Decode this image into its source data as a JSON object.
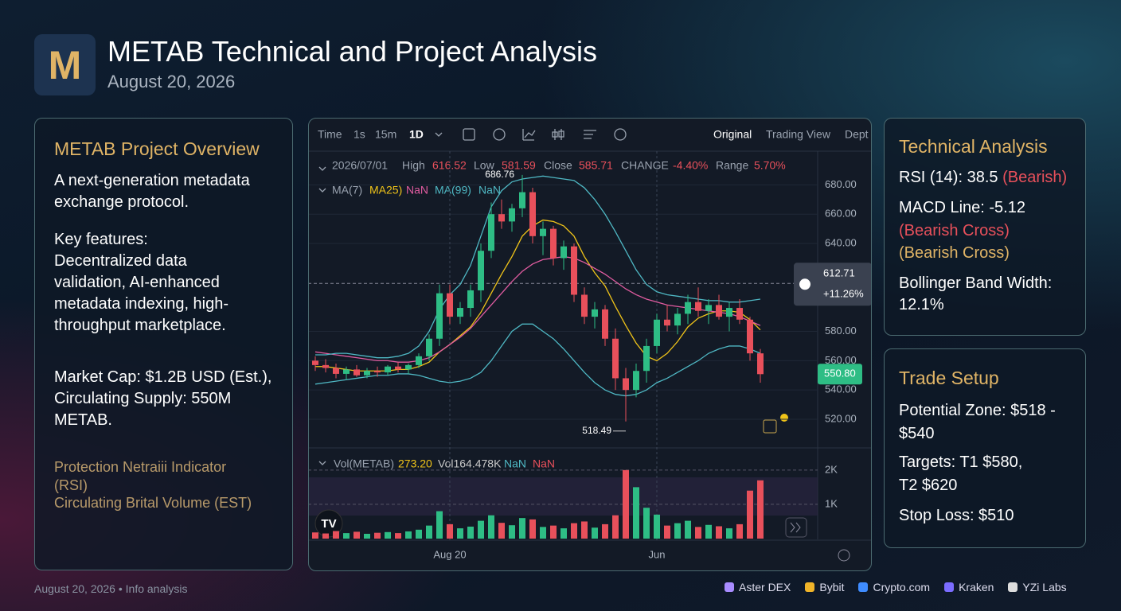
{
  "header": {
    "logo": "M",
    "title": "METAB Technical and Project Analysis",
    "date": "August 20, 2026"
  },
  "overview": {
    "title": "METAB Project Overview",
    "intro": "A next-generation metadata exchange protocol.",
    "features_label": "Key features:",
    "features": "Decentralized data validation, AI-enhanced metadata indexing, high-throughput marketplace.",
    "market": "Market Cap: $1.2B USD (Est.), Circulating Supply: 550M METAB.",
    "note1": "Protection Netraiii Indicator (RSI)",
    "note2": "Circulating Brital Volume (EST)"
  },
  "toolbar": {
    "items": [
      "Time",
      "1s",
      "15m",
      "1D"
    ],
    "views": [
      "Original",
      "Trading View",
      "Dept"
    ]
  },
  "info": {
    "date": "2026/07/01",
    "high_label": "High",
    "high": "616.52",
    "low_label": "Low",
    "low": "581.59",
    "close_label": "Close",
    "close": "585.71",
    "change_label": "CHANGE",
    "change": "-4.40%",
    "range_label": "Range",
    "range": "5.70%"
  },
  "ma_legend": [
    "MA(7)",
    "MA25)",
    "NaN",
    "MA(99)",
    "NaN"
  ],
  "vol_legend": [
    "Vol(METAB)",
    "273.20",
    "Vol164.478K",
    "NaN",
    "NaN"
  ],
  "chart_data": {
    "type": "candlestick",
    "categories": [
      null,
      null,
      null,
      null,
      null,
      null,
      null,
      null,
      null,
      null,
      null,
      null,
      null,
      "Aug 20",
      null,
      null,
      null,
      null,
      null,
      null,
      null,
      null,
      null,
      null,
      null,
      null,
      null,
      null,
      null,
      null,
      null,
      null,
      null,
      "Jun",
      null,
      null,
      null,
      null,
      null,
      null,
      null,
      null,
      null,
      null
    ],
    "open": [
      560,
      557,
      555,
      551,
      554,
      550,
      553,
      552,
      556,
      554,
      557,
      563,
      575,
      606,
      590,
      596,
      608,
      635,
      660,
      655,
      664,
      675,
      645,
      650,
      630,
      638,
      605,
      590,
      595,
      575,
      548,
      540,
      553,
      570,
      588,
      584,
      592,
      600,
      594,
      598,
      590,
      596,
      588,
      565
    ],
    "high": [
      563,
      561,
      558,
      556,
      557,
      555,
      556,
      557,
      559,
      558,
      565,
      578,
      612,
      612,
      600,
      612,
      640,
      668,
      670,
      667,
      686.76,
      678,
      655,
      652,
      642,
      640,
      610,
      600,
      598,
      582,
      555,
      558,
      575,
      592,
      598,
      596,
      605,
      610,
      602,
      605,
      600,
      602,
      590,
      568
    ],
    "low": [
      553,
      552,
      548,
      547,
      549,
      548,
      549,
      550,
      552,
      551,
      555,
      560,
      570,
      585,
      585,
      590,
      600,
      630,
      650,
      648,
      658,
      640,
      632,
      625,
      622,
      600,
      585,
      582,
      570,
      540,
      518.49,
      535,
      545,
      565,
      580,
      578,
      585,
      590,
      585,
      588,
      580,
      585,
      560,
      545
    ],
    "close": [
      557,
      555,
      551,
      554,
      550,
      553,
      552,
      556,
      554,
      557,
      563,
      575,
      606,
      590,
      596,
      608,
      635,
      660,
      655,
      664,
      675,
      645,
      650,
      630,
      638,
      605,
      590,
      595,
      575,
      548,
      540,
      553,
      570,
      588,
      584,
      592,
      600,
      594,
      598,
      590,
      596,
      588,
      565,
      550.8
    ],
    "up_color": "#2ebd85",
    "down_color": "#e8505b",
    "ylim": [
      501,
      703
    ],
    "yticks": [
      {
        "value": 520,
        "label": "520.00"
      },
      {
        "value": 540,
        "label": "540.00"
      },
      {
        "value": 560,
        "label": "560.00"
      },
      {
        "value": 580,
        "label": "580.00"
      },
      {
        "value": 640,
        "label": "640.00"
      },
      {
        "value": 660,
        "label": "660.00"
      },
      {
        "value": 680,
        "label": "680.00"
      }
    ],
    "overlays": [
      {
        "color": "#f0c419",
        "values": [
          556,
          556,
          555,
          554,
          553,
          553,
          553,
          553,
          554,
          554,
          556,
          559,
          566,
          571,
          577,
          583,
          593,
          606,
          619,
          631,
          645,
          652,
          656,
          655,
          652,
          645,
          631,
          620,
          611,
          597,
          584,
          572,
          563,
          560,
          565,
          573,
          583,
          589,
          592,
          594,
          594,
          593,
          588,
          581
        ]
      },
      {
        "color": "#e05ca0",
        "values": [
          566,
          565,
          564,
          563,
          562,
          561,
          560,
          560,
          559,
          559,
          560,
          562,
          566,
          571,
          576,
          582,
          590,
          598,
          606,
          614,
          621,
          626,
          629,
          630,
          631,
          630,
          627,
          623,
          619,
          614,
          609,
          605,
          602,
          600,
          598,
          597,
          596,
          595,
          594,
          593,
          592,
          590,
          587,
          584
        ]
      },
      {
        "color": "#4fb8c4",
        "values": [
          564,
          564,
          565,
          565,
          564,
          563,
          562,
          562,
          563,
          565,
          570,
          580,
          595,
          605,
          612,
          625,
          645,
          665,
          676,
          682,
          684,
          685,
          686,
          685,
          684,
          683,
          678,
          670,
          660,
          648,
          635,
          622,
          612,
          607,
          605,
          604,
          603,
          602,
          601,
          601,
          600,
          600,
          601,
          602
        ]
      },
      {
        "color": "#4fb8c4",
        "values": [
          544,
          545,
          546,
          547,
          548,
          549,
          550,
          550,
          551,
          551,
          550,
          548,
          546,
          545,
          546,
          548,
          552,
          560,
          570,
          580,
          585,
          585,
          580,
          575,
          568,
          560,
          552,
          545,
          540,
          537,
          536,
          537,
          540,
          545,
          548,
          552,
          556,
          560,
          565,
          568,
          570,
          570,
          568,
          565
        ]
      }
    ],
    "high_marker": 686.76,
    "low_marker": 518.49,
    "crosshair": 612.71,
    "crosshair_change": "+11.26%",
    "last_price": {
      "value": 550.8,
      "label": "550.80"
    },
    "volume": {
      "values": [
        180,
        150,
        220,
        160,
        200,
        140,
        170,
        190,
        160,
        210,
        260,
        380,
        800,
        420,
        300,
        350,
        520,
        680,
        460,
        390,
        600,
        560,
        340,
        380,
        300,
        450,
        500,
        320,
        420,
        680,
        2000,
        1500,
        900,
        700,
        380,
        450,
        520,
        340,
        400,
        360,
        300,
        420,
        1400,
        1700
      ],
      "ylim": [
        0,
        2600
      ],
      "yticks": [
        {
          "value": 1000,
          "label": "1K"
        },
        {
          "value": 2000,
          "label": "2K"
        }
      ]
    }
  },
  "technical": {
    "title": "Technical Analysis",
    "rsi": "RSI (14): 38.5",
    "rsi_note": "(Bearish)",
    "macd": "MACD Line: -5.12",
    "macd_note1": "(Bearish Cross)",
    "macd_note2": "(Bearish Cross)",
    "bbw": "Bollinger Band Width: 12.1%"
  },
  "trade": {
    "title": "Trade Setup",
    "zone": "Potential Zone: $518 - $540",
    "targets1": "Targets: T1 $580,",
    "targets2": "T2 $620",
    "stop": "Stop Loss: $510"
  },
  "footer": {
    "note": "August 20, 2026 • Info analysis",
    "exchanges": [
      "Aster DEX",
      "Bybit",
      "Crypto.com",
      "Kraken",
      "YZi Labs"
    ]
  }
}
